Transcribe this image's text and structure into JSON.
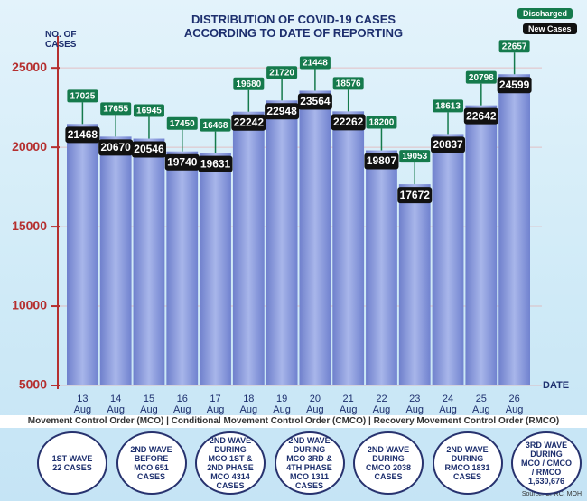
{
  "chart_data": {
    "type": "bar",
    "title": "DISTRIBUTION OF COVID-19 CASES ACCORDING TO DATE OF REPORTING",
    "y_label": "NO. OF CASES",
    "x_label": "DATE",
    "categories": [
      "13 Aug",
      "14 Aug",
      "15 Aug",
      "16 Aug",
      "17 Aug",
      "18 Aug",
      "19 Aug",
      "20 Aug",
      "21 Aug",
      "22 Aug",
      "23 Aug",
      "24 Aug",
      "25 Aug",
      "26 Aug"
    ],
    "series": [
      {
        "name": "New Cases",
        "color": "#111111",
        "values": [
          21468,
          20670,
          20546,
          19740,
          19631,
          22242,
          22948,
          23564,
          22262,
          19807,
          17672,
          20837,
          22642,
          24599
        ]
      },
      {
        "name": "Discharged",
        "color": "#157a4c",
        "values": [
          17025,
          17655,
          16945,
          17450,
          16468,
          19680,
          21720,
          21448,
          18576,
          18200,
          19053,
          18613,
          20798,
          22657
        ]
      }
    ],
    "ylim": [
      5000,
      27000
    ],
    "yticks": [
      5000,
      10000,
      15000,
      20000,
      25000
    ],
    "grid": true,
    "legend": "top-right",
    "footer": "Movement Control Order (MCO) | Conditional Movement Control Order (CMCO) | Recovery Movement Control Order (RMCO)",
    "waves": [
      "1ST WAVE 22 CASES",
      "2ND WAVE BEFORE MCO 651 CASES",
      "2ND WAVE DURING MCO 1ST & 2ND PHASE MCO 4314 CASES",
      "2ND WAVE DURING MCO 3RD & 4TH PHASE MCO 1311 CASES",
      "2ND WAVE DURING CMCO 2038 CASES",
      "2ND WAVE DURING RMCO 1831 CASES",
      "3RD WAVE DURING MCO / CMCO / RMCO 1,630,676"
    ],
    "source": "Source: CPRC, MOH"
  }
}
